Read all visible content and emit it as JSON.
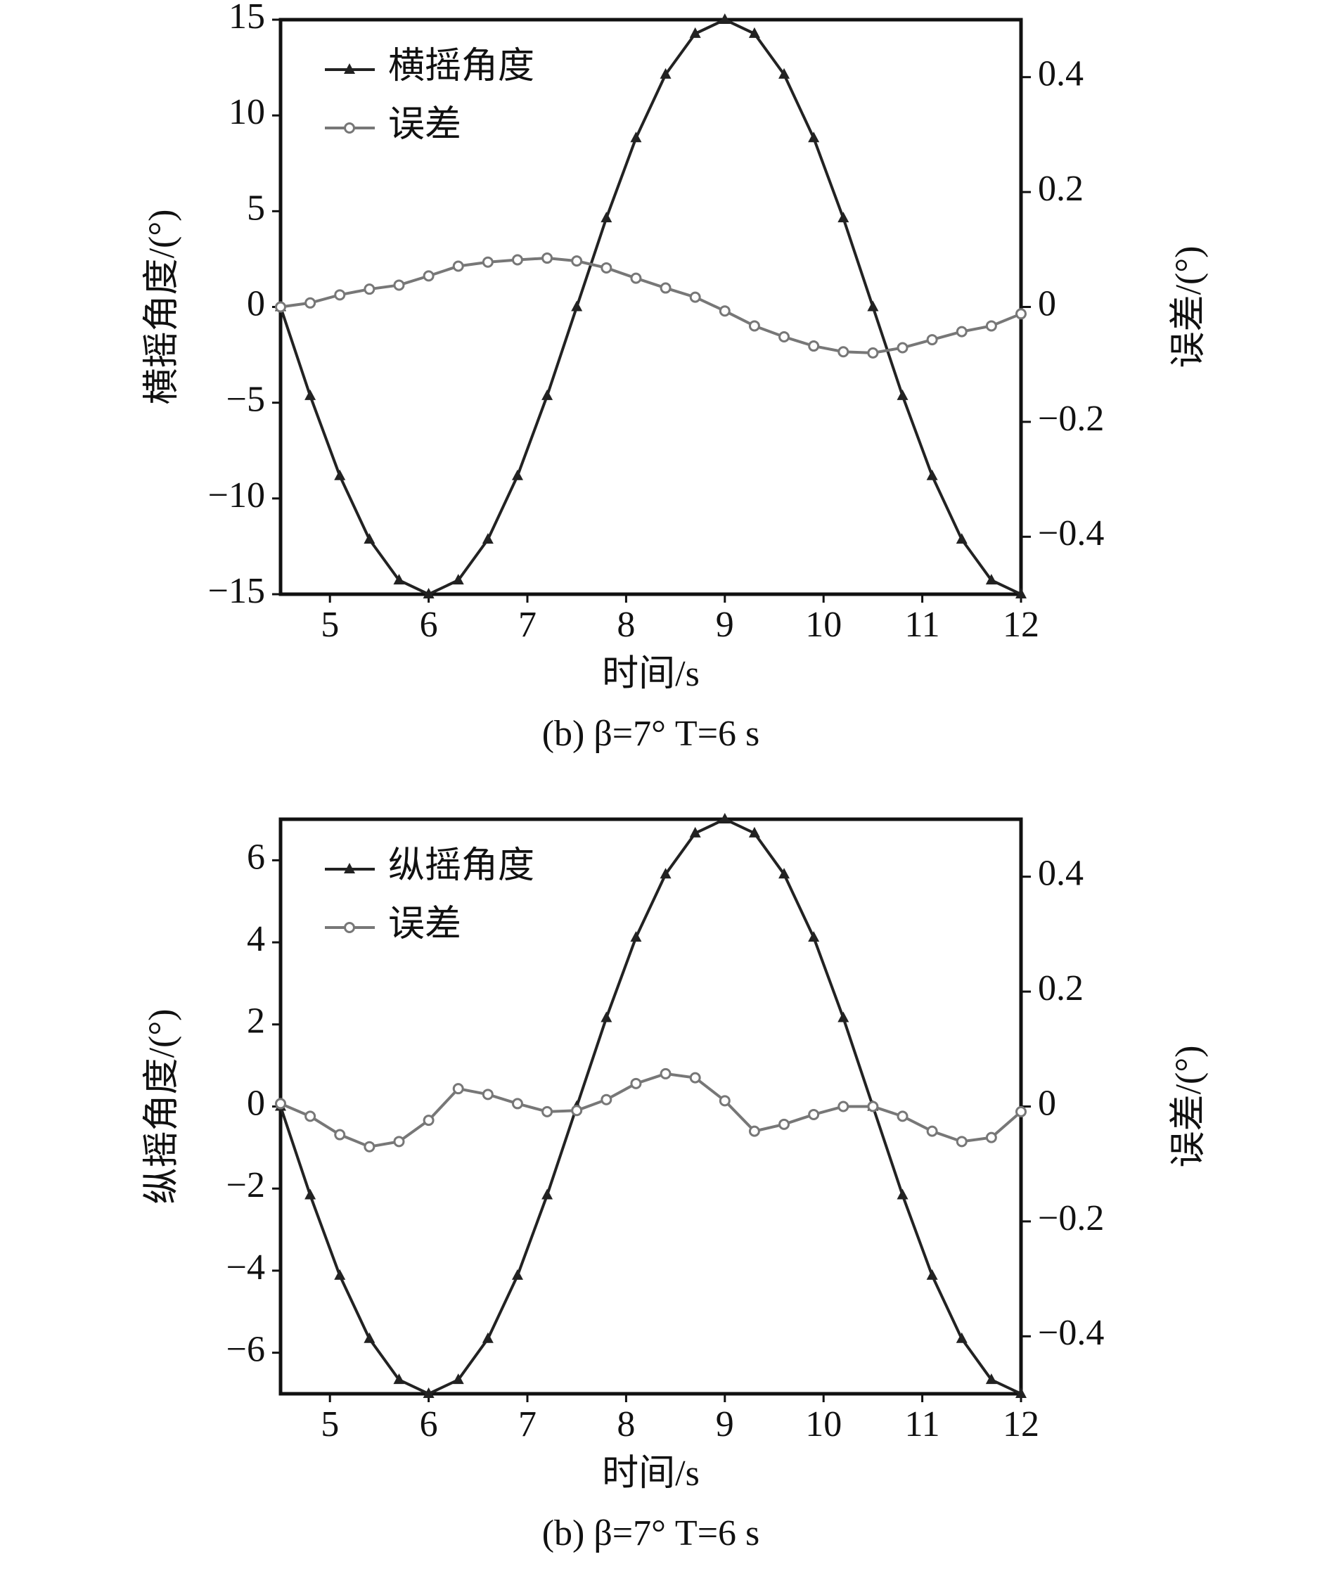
{
  "chart_data": [
    {
      "type": "line",
      "x_label": "时间/s",
      "y_label": "横摇角度/(°)",
      "y2_label": "误差/(°)",
      "caption": "(b) β=7° T=6 s",
      "x": [
        4.5,
        4.8,
        5.1,
        5.4,
        5.7,
        6.0,
        6.3,
        6.6,
        6.9,
        7.2,
        7.5,
        7.8,
        8.1,
        8.4,
        8.7,
        9.0,
        9.3,
        9.6,
        9.9,
        10.2,
        10.5,
        10.8,
        11.1,
        11.4,
        11.7,
        12.0
      ],
      "xlim": [
        4.5,
        12
      ],
      "xticks": [
        5,
        6,
        7,
        8,
        9,
        10,
        11,
        12
      ],
      "ylim": [
        -15,
        15
      ],
      "yticks": [
        {
          "value": -15,
          "label": "−15"
        },
        {
          "value": -10,
          "label": "−10"
        },
        {
          "value": -5,
          "label": "−5"
        },
        0,
        5,
        10,
        15
      ],
      "y2lim": [
        -0.5,
        0.5
      ],
      "y2ticks": [
        {
          "value": -0.4,
          "label": "−0.4"
        },
        {
          "value": -0.2,
          "label": "−0.2"
        },
        0,
        0.2,
        0.4
      ],
      "series": [
        {
          "name": "横摇角度",
          "color": "#222222",
          "marker": "triangle",
          "values": [
            0,
            -4.64,
            -8.82,
            -12.14,
            -14.27,
            -15,
            -14.27,
            -12.14,
            -8.82,
            -4.64,
            0,
            4.64,
            8.82,
            12.14,
            14.27,
            15,
            14.27,
            12.14,
            8.82,
            4.64,
            0,
            -4.64,
            -8.82,
            -12.14,
            -14.27,
            -15
          ]
        },
        {
          "name": "误差",
          "color": "#777777",
          "marker": "circle",
          "axis": "y2",
          "values": [
            0,
            0.007,
            0.021,
            0.031,
            0.038,
            0.054,
            0.071,
            0.078,
            0.082,
            0.085,
            0.08,
            0.068,
            0.05,
            0.033,
            0.017,
            -0.007,
            -0.033,
            -0.052,
            -0.068,
            -0.078,
            -0.08,
            -0.071,
            -0.057,
            -0.043,
            -0.033,
            -0.012
          ]
        }
      ]
    },
    {
      "type": "line",
      "x_label": "时间/s",
      "y_label": "纵摇角度/(°)",
      "y2_label": "误差/(°)",
      "caption": "(b) β=7° T=6 s",
      "x": [
        4.5,
        4.8,
        5.1,
        5.4,
        5.7,
        6.0,
        6.3,
        6.6,
        6.9,
        7.2,
        7.5,
        7.8,
        8.1,
        8.4,
        8.7,
        9.0,
        9.3,
        9.6,
        9.9,
        10.2,
        10.5,
        10.8,
        11.1,
        11.4,
        11.7,
        12.0
      ],
      "xlim": [
        4.5,
        12
      ],
      "xticks": [
        5,
        6,
        7,
        8,
        9,
        10,
        11,
        12
      ],
      "ylim": [
        -7,
        7
      ],
      "yticks": [
        {
          "value": -6,
          "label": "−6"
        },
        {
          "value": -4,
          "label": "−4"
        },
        {
          "value": -2,
          "label": "−2"
        },
        0,
        2,
        4,
        6
      ],
      "y2lim": [
        -0.5,
        0.5
      ],
      "y2ticks": [
        {
          "value": -0.4,
          "label": "−0.4"
        },
        {
          "value": -0.2,
          "label": "−0.2"
        },
        0,
        0.2,
        0.4
      ],
      "series": [
        {
          "name": "纵摇角度",
          "color": "#222222",
          "marker": "triangle",
          "values": [
            0,
            -2.16,
            -4.12,
            -5.66,
            -6.66,
            -7,
            -6.66,
            -5.66,
            -4.12,
            -2.16,
            0,
            2.16,
            4.12,
            5.66,
            6.66,
            7,
            6.66,
            5.66,
            4.12,
            2.16,
            0,
            -2.16,
            -4.12,
            -5.66,
            -6.66,
            -7
          ]
        },
        {
          "name": "误差",
          "color": "#777777",
          "marker": "circle",
          "axis": "y2",
          "values": [
            0.005,
            -0.017,
            -0.049,
            -0.07,
            -0.061,
            -0.024,
            0.031,
            0.021,
            0.005,
            -0.009,
            -0.007,
            0.012,
            0.04,
            0.057,
            0.05,
            0.01,
            -0.043,
            -0.031,
            -0.014,
            0,
            0,
            -0.017,
            -0.043,
            -0.061,
            -0.054,
            -0.009
          ]
        }
      ]
    }
  ]
}
